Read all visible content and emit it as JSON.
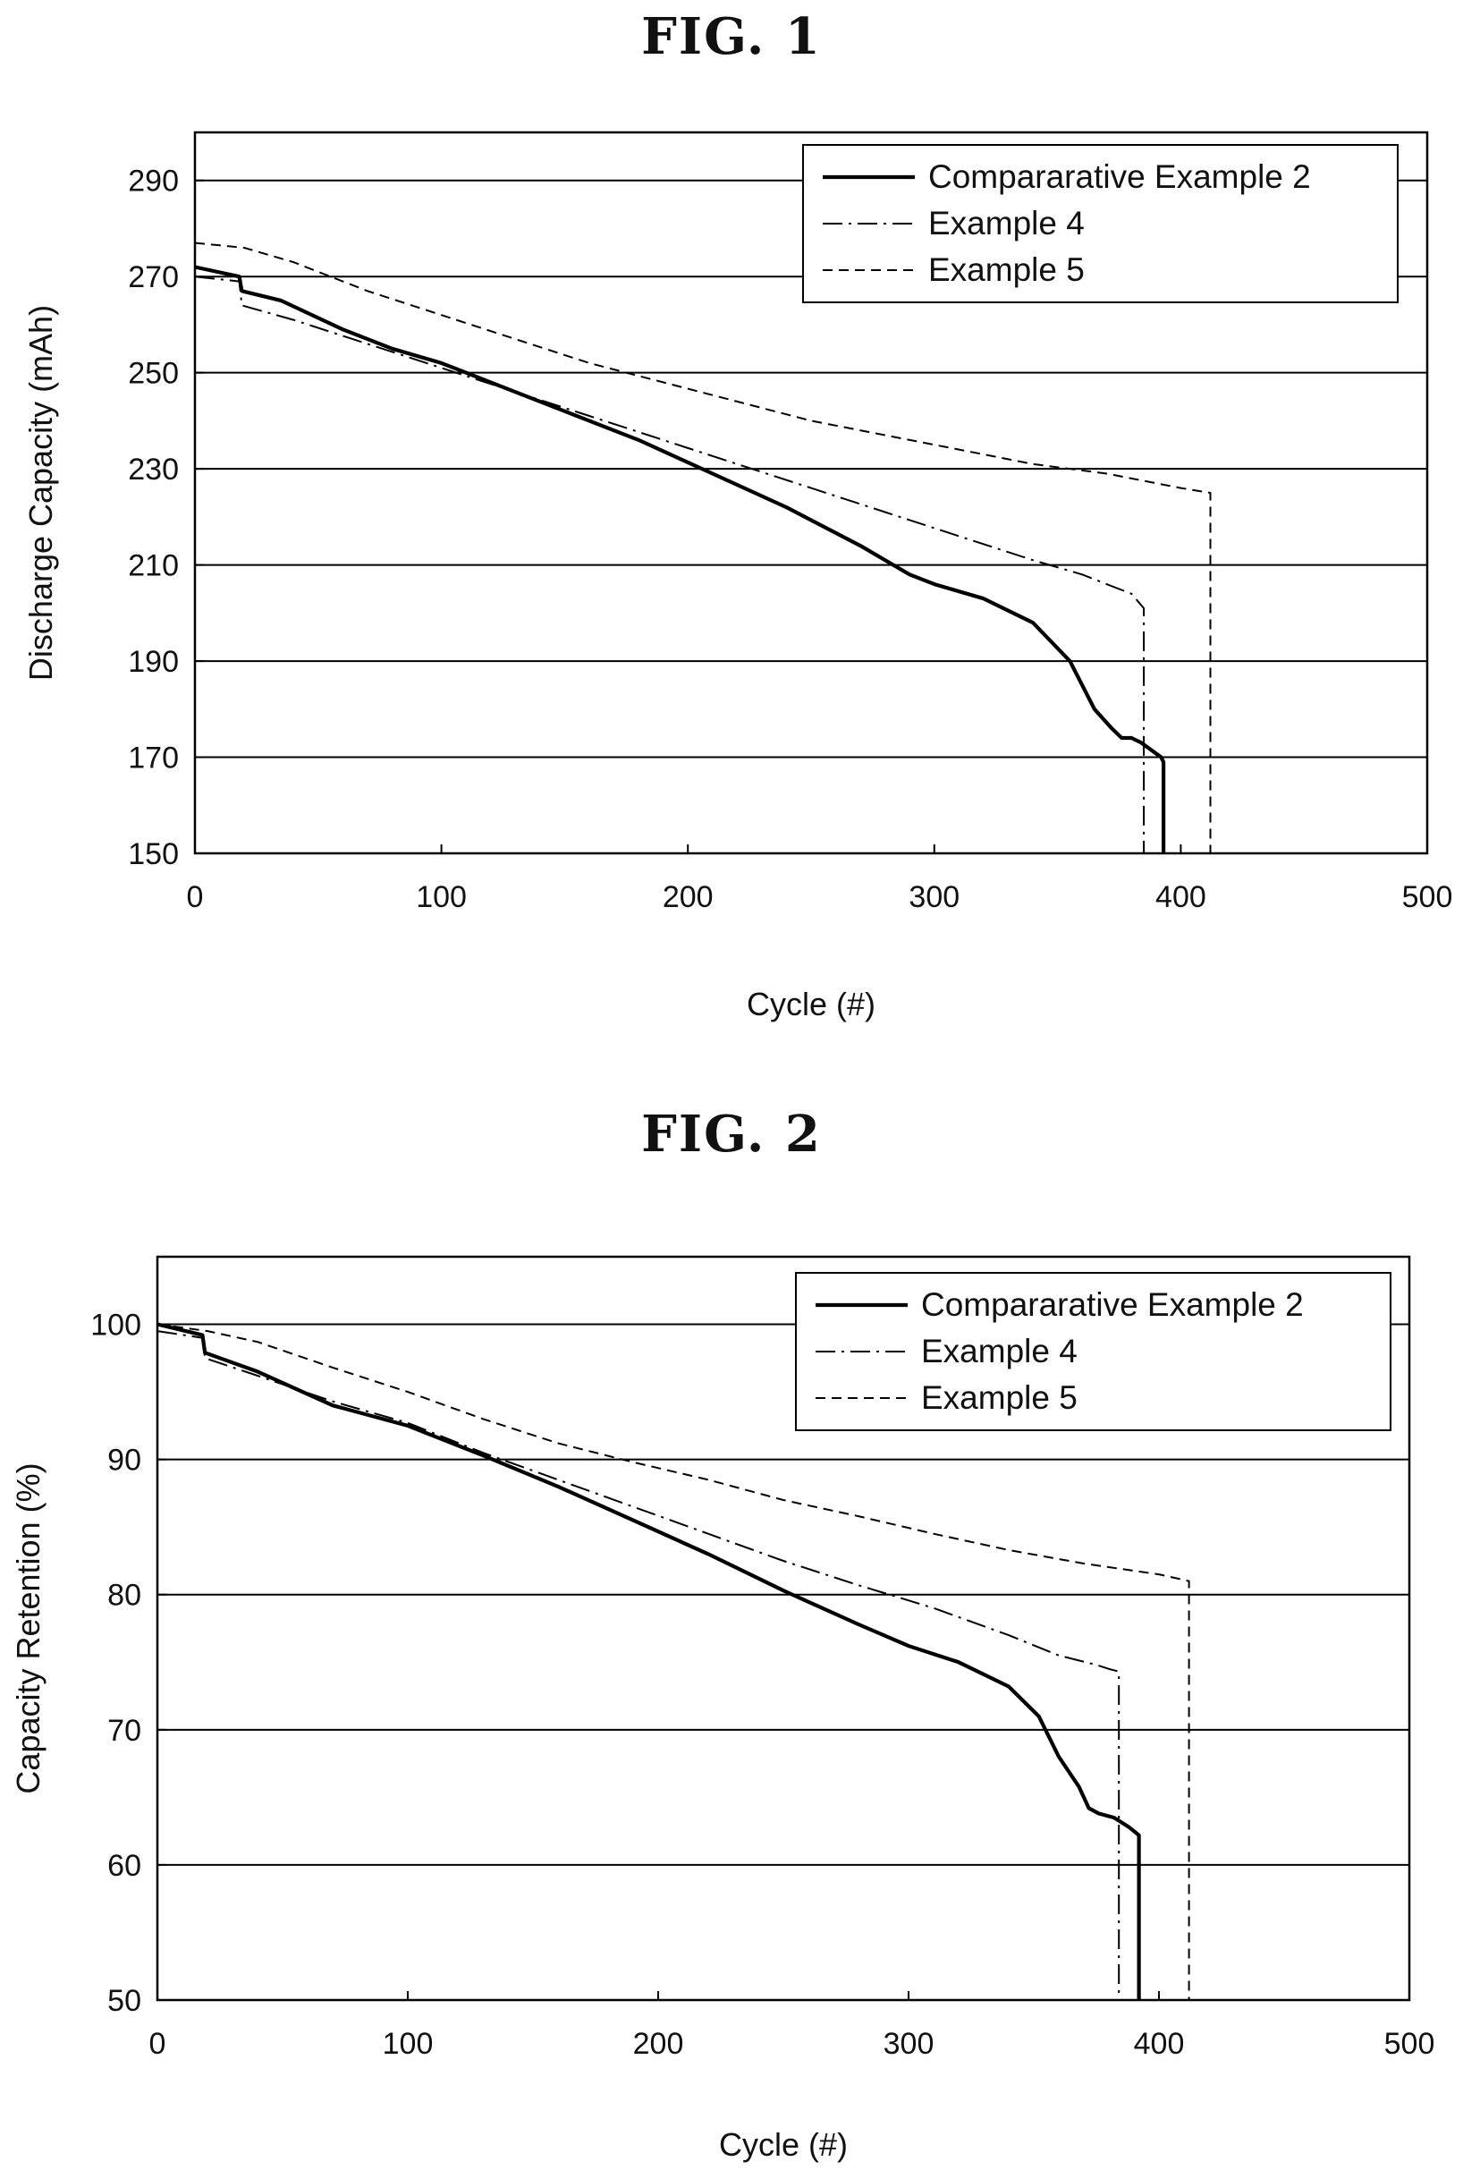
{
  "figures": [
    {
      "title": "FIG. 1",
      "chart_data": {
        "type": "line",
        "xlabel": "Cycle (#)",
        "ylabel": "Discharge Capacity (mAh)",
        "xlim": [
          0,
          500
        ],
        "ylim": [
          150,
          300
        ],
        "xticks": [
          0,
          100,
          200,
          300,
          400,
          500
        ],
        "yticks": [
          150,
          170,
          190,
          210,
          230,
          250,
          270,
          290
        ],
        "grid": "horizontal",
        "legend_position": "top-right",
        "series": [
          {
            "name": "Compararative Example 2",
            "style": "solid",
            "color": "#000000",
            "x": [
              0,
              18,
              19,
              35,
              60,
              80,
              100,
              120,
              150,
              180,
              210,
              240,
              270,
              290,
              300,
              320,
              340,
              355,
              365,
              372,
              376,
              380,
              384,
              392,
              393,
              393
            ],
            "y": [
              272,
              270,
              267,
              265,
              259,
              255,
              252,
              248,
              242,
              236,
              229,
              222,
              214,
              208,
              206,
              203,
              198,
              190,
              180,
              176,
              174,
              174,
              173,
              170,
              169,
              150
            ]
          },
          {
            "name": "Example 4",
            "style": "dashdot",
            "color": "#000000",
            "x": [
              0,
              18,
              19,
              40,
              70,
              100,
              130,
              160,
              190,
              220,
              250,
              280,
              310,
              340,
              360,
              375,
              380,
              385,
              385
            ],
            "y": [
              270,
              269,
              264,
              261,
              256,
              251,
              246,
              241,
              236,
              231,
              226,
              221,
              216,
              211,
              208,
              205,
              204,
              201,
              150
            ]
          },
          {
            "name": "Example 5",
            "style": "dashed",
            "color": "#000000",
            "x": [
              0,
              20,
              40,
              70,
              100,
              130,
              160,
              190,
              220,
              250,
              280,
              310,
              340,
              370,
              400,
              412,
              412
            ],
            "y": [
              277,
              276,
              273,
              267,
              262,
              257,
              252,
              248,
              244,
              240,
              237,
              234,
              231,
              229,
              226,
              225,
              150
            ]
          }
        ]
      }
    },
    {
      "title": "FIG. 2",
      "chart_data": {
        "type": "line",
        "xlabel": "Cycle (#)",
        "ylabel": "Capacity Retention (%)",
        "xlim": [
          0,
          500
        ],
        "ylim": [
          50,
          105
        ],
        "xticks": [
          0,
          100,
          200,
          300,
          400,
          500
        ],
        "yticks": [
          50,
          60,
          70,
          80,
          90,
          100
        ],
        "grid": "horizontal",
        "legend_position": "top-right",
        "series": [
          {
            "name": "Compararative Example 2",
            "style": "solid",
            "color": "#000000",
            "x": [
              0,
              18,
              19,
              40,
              70,
              100,
              130,
              160,
              190,
              220,
              250,
              280,
              300,
              320,
              340,
              352,
              360,
              368,
              372,
              376,
              382,
              388,
              392,
              392
            ],
            "y": [
              100,
              99.2,
              97.9,
              96.5,
              94.0,
              92.5,
              90.3,
              88.0,
              85.5,
              83.0,
              80.3,
              77.8,
              76.2,
              75.0,
              73.2,
              71.0,
              68.0,
              65.8,
              64.2,
              63.8,
              63.5,
              62.8,
              62.2,
              50
            ]
          },
          {
            "name": "Example 4",
            "style": "dashdot",
            "color": "#000000",
            "x": [
              0,
              18,
              19,
              40,
              70,
              100,
              130,
              160,
              190,
              220,
              250,
              280,
              310,
              340,
              360,
              375,
              380,
              384,
              384
            ],
            "y": [
              99.5,
              99.0,
              97.5,
              96.2,
              94.3,
              92.7,
              90.5,
              88.5,
              86.5,
              84.5,
              82.5,
              80.7,
              79.0,
              77.0,
              75.5,
              74.8,
              74.5,
              74.3,
              50
            ]
          },
          {
            "name": "Example 5",
            "style": "dashed",
            "color": "#000000",
            "x": [
              0,
              20,
              40,
              70,
              100,
              130,
              160,
              190,
              220,
              250,
              280,
              310,
              340,
              370,
              400,
              412,
              412
            ],
            "y": [
              100,
              99.5,
              98.7,
              96.8,
              95.0,
              93.0,
              91.2,
              89.8,
              88.5,
              87.0,
              85.8,
              84.5,
              83.3,
              82.3,
              81.5,
              81.0,
              50
            ]
          }
        ]
      }
    }
  ]
}
